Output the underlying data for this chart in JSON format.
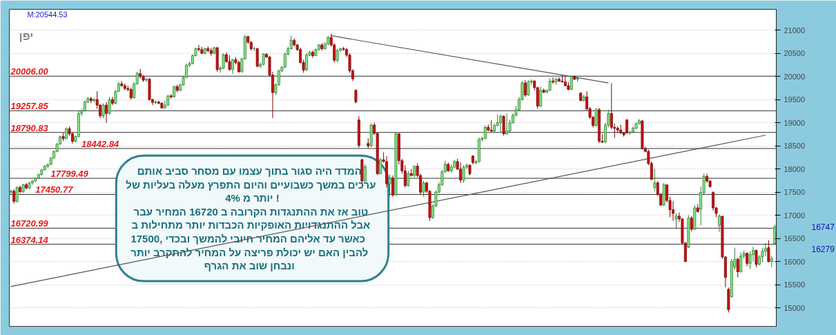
{
  "chart_data": {
    "type": "candlestick",
    "title": "יפן",
    "categories": [
      null,
      null,
      null,
      null,
      null,
      null,
      null,
      null,
      null,
      null,
      null,
      null,
      null,
      null,
      null,
      null,
      null,
      null,
      null,
      null,
      null,
      null,
      null,
      null,
      null,
      null,
      null,
      null,
      null,
      null,
      null,
      null,
      null,
      null,
      null,
      null,
      null,
      null,
      null,
      null,
      null,
      null,
      null,
      null,
      null,
      null,
      null,
      null,
      null,
      null,
      null,
      null,
      null,
      null,
      null,
      null,
      null,
      null,
      null,
      null,
      null,
      null,
      null,
      null,
      null,
      null,
      null,
      null,
      null,
      null,
      null,
      null,
      null,
      null,
      null,
      null,
      null,
      null,
      null,
      null,
      null,
      null,
      null,
      null,
      null,
      null,
      null,
      null,
      null,
      null,
      null,
      null,
      null,
      null,
      null,
      null,
      null,
      null,
      null,
      null,
      null,
      null,
      null,
      null,
      null,
      null,
      null,
      null,
      null,
      null,
      null,
      null,
      null,
      null,
      null,
      null,
      null,
      null,
      null,
      null,
      null,
      null,
      null,
      null,
      null,
      null,
      null,
      null,
      null,
      null,
      null,
      null,
      null,
      null,
      null,
      null,
      null,
      null,
      null,
      null,
      null,
      null,
      null,
      null,
      null,
      null,
      null,
      null,
      null,
      null,
      null,
      null,
      null,
      null,
      null,
      null,
      null,
      null,
      null,
      null,
      null,
      null,
      null,
      null,
      null,
      null,
      null,
      null,
      null,
      null,
      null,
      null,
      null,
      null,
      null,
      null,
      null,
      null,
      null,
      null,
      null,
      null,
      null,
      null,
      null,
      null,
      null,
      null,
      null,
      null,
      null,
      null,
      null,
      null,
      null,
      null,
      null,
      null,
      null,
      null,
      null,
      null,
      null,
      null,
      null,
      null,
      null,
      null,
      null,
      null,
      null,
      null,
      null,
      null,
      null,
      null,
      null,
      null,
      null,
      null,
      null,
      null,
      null,
      null,
      null,
      null,
      null,
      null,
      null,
      null,
      null,
      null,
      null,
      null,
      null,
      null,
      null,
      null,
      null,
      null,
      null,
      null,
      null,
      null,
      null,
      null,
      null,
      null,
      null
    ],
    "ohlc": [
      [
        17500,
        17560,
        17440,
        17520
      ],
      [
        17520,
        17560,
        17250,
        17300
      ],
      [
        17300,
        17620,
        17280,
        17600
      ],
      [
        17600,
        17640,
        17480,
        17510
      ],
      [
        17510,
        17680,
        17490,
        17660
      ],
      [
        17660,
        17700,
        17560,
        17590
      ],
      [
        17590,
        17720,
        17570,
        17700
      ],
      [
        17700,
        17760,
        17660,
        17740
      ],
      [
        17740,
        17820,
        17720,
        17800
      ],
      [
        17800,
        17900,
        17780,
        17880
      ],
      [
        17880,
        18000,
        17860,
        17980
      ],
      [
        17980,
        18080,
        17960,
        18060
      ],
      [
        18060,
        18120,
        18020,
        18100
      ],
      [
        18100,
        18250,
        18080,
        18240
      ],
      [
        18240,
        18400,
        18220,
        18380
      ],
      [
        18380,
        18560,
        18360,
        18540
      ],
      [
        18540,
        18720,
        18520,
        18700
      ],
      [
        18700,
        18780,
        18600,
        18660
      ],
      [
        18660,
        18900,
        18640,
        18870
      ],
      [
        18870,
        18920,
        18720,
        18760
      ],
      [
        18760,
        18800,
        18550,
        18600
      ],
      [
        18600,
        18720,
        18580,
        18700
      ],
      [
        18700,
        19250,
        18680,
        19200
      ],
      [
        19200,
        19300,
        19150,
        19260
      ],
      [
        19260,
        19480,
        19240,
        19450
      ],
      [
        19450,
        19560,
        19420,
        19520
      ],
      [
        19520,
        19560,
        19420,
        19480
      ],
      [
        19480,
        19530,
        19440,
        19500
      ],
      [
        19500,
        19680,
        19300,
        19380
      ],
      [
        19380,
        19400,
        19100,
        19150
      ],
      [
        19150,
        19420,
        19100,
        19380
      ],
      [
        19380,
        19450,
        19000,
        19200
      ],
      [
        19200,
        19560,
        19180,
        19500
      ],
      [
        19500,
        19560,
        19380,
        19420
      ],
      [
        19420,
        19700,
        19400,
        19680
      ],
      [
        19680,
        19880,
        19660,
        19840
      ],
      [
        19840,
        19900,
        19780,
        19800
      ],
      [
        19800,
        19850,
        19700,
        19740
      ],
      [
        19740,
        19800,
        19680,
        19720
      ],
      [
        19720,
        19760,
        19500,
        19540
      ],
      [
        19540,
        19880,
        19520,
        19840
      ],
      [
        19840,
        20100,
        19820,
        20060
      ],
      [
        20060,
        20160,
        19950,
        20000
      ],
      [
        20000,
        20020,
        19880,
        19920
      ],
      [
        19920,
        19960,
        19880,
        19940
      ],
      [
        19940,
        19960,
        19480,
        19500
      ],
      [
        19500,
        19520,
        19380,
        19440
      ],
      [
        19440,
        19480,
        19400,
        19450
      ],
      [
        19450,
        19470,
        19400,
        19420
      ],
      [
        19420,
        19440,
        19300,
        19320
      ],
      [
        19320,
        19480,
        19300,
        19380
      ],
      [
        19380,
        19600,
        19380,
        19580
      ],
      [
        19580,
        19620,
        19520,
        19560
      ],
      [
        19560,
        19800,
        19540,
        19780
      ],
      [
        19780,
        19820,
        19660,
        19700
      ],
      [
        19700,
        19840,
        19680,
        19820
      ],
      [
        19820,
        20000,
        19800,
        19980
      ],
      [
        19980,
        20280,
        19960,
        20240
      ],
      [
        20240,
        20320,
        20200,
        20280
      ],
      [
        20280,
        20480,
        20260,
        20450
      ],
      [
        20450,
        20620,
        20430,
        20600
      ],
      [
        20600,
        20680,
        20540,
        20580
      ],
      [
        20580,
        20640,
        20480,
        20500
      ],
      [
        20500,
        20620,
        20480,
        20600
      ],
      [
        20600,
        20650,
        20520,
        20560
      ],
      [
        20560,
        20620,
        20450,
        20500
      ],
      [
        20500,
        20640,
        20480,
        20620
      ],
      [
        20620,
        20640,
        20100,
        20150
      ],
      [
        20150,
        20220,
        20080,
        20180
      ],
      [
        20180,
        20500,
        20160,
        20470
      ],
      [
        20470,
        20520,
        20300,
        20320
      ],
      [
        20320,
        20460,
        20120,
        20150
      ],
      [
        20150,
        20380,
        20050,
        20360
      ],
      [
        20360,
        20420,
        20260,
        20300
      ],
      [
        20300,
        20340,
        20080,
        20100
      ],
      [
        20100,
        20400,
        20080,
        20380
      ],
      [
        20380,
        20900,
        20360,
        20860
      ],
      [
        20860,
        20880,
        20700,
        20740
      ],
      [
        20740,
        20760,
        20560,
        20600
      ],
      [
        20600,
        20640,
        20550,
        20600
      ],
      [
        20600,
        20620,
        20200,
        20220
      ],
      [
        20220,
        20300,
        20180,
        20260
      ],
      [
        20260,
        20500,
        20240,
        20480
      ],
      [
        20480,
        20500,
        20400,
        20420
      ],
      [
        20420,
        20440,
        20000,
        20030
      ],
      [
        20030,
        20100,
        19100,
        19650
      ],
      [
        19650,
        19850,
        19600,
        19820
      ],
      [
        19820,
        20150,
        19800,
        20120
      ],
      [
        20120,
        20220,
        20100,
        20200
      ],
      [
        20200,
        20520,
        20180,
        20480
      ],
      [
        20480,
        20640,
        20460,
        20600
      ],
      [
        20600,
        20880,
        20580,
        20780
      ],
      [
        20780,
        20820,
        20650,
        20680
      ],
      [
        20680,
        20700,
        20550,
        20580
      ],
      [
        20580,
        20620,
        20280,
        20300
      ],
      [
        20300,
        20360,
        20080,
        20140
      ],
      [
        20140,
        20500,
        20120,
        20460
      ],
      [
        20460,
        20560,
        20440,
        20520
      ],
      [
        20520,
        20560,
        20400,
        20450
      ],
      [
        20450,
        20600,
        20440,
        20580
      ],
      [
        20580,
        20700,
        20560,
        20680
      ],
      [
        20680,
        20720,
        20560,
        20600
      ],
      [
        20600,
        20740,
        20580,
        20700
      ],
      [
        20700,
        20880,
        20680,
        20840
      ],
      [
        20840,
        20920,
        20650,
        20680
      ],
      [
        20680,
        20720,
        20300,
        20350
      ],
      [
        20350,
        20600,
        20300,
        20560
      ],
      [
        20560,
        20620,
        20540,
        20600
      ],
      [
        20600,
        20640,
        20560,
        20580
      ],
      [
        20580,
        20620,
        20420,
        20460
      ],
      [
        20460,
        20500,
        20080,
        20120
      ],
      [
        20120,
        20160,
        19900,
        19950
      ],
      [
        19700,
        19720,
        19420,
        19450
      ],
      [
        19060,
        19140,
        18460,
        18510
      ],
      [
        18200,
        18220,
        17700,
        17740
      ],
      [
        17740,
        18100,
        17720,
        18050
      ],
      [
        18550,
        18660,
        18450,
        18500
      ],
      [
        18500,
        18980,
        18480,
        18950
      ],
      [
        18950,
        19000,
        18740,
        18770
      ],
      [
        18770,
        18800,
        17870,
        17900
      ],
      [
        17900,
        18240,
        17880,
        18200
      ],
      [
        18200,
        18360,
        18140,
        18160
      ],
      [
        18160,
        18280,
        17600,
        17680
      ],
      [
        17680,
        17880,
        17420,
        17800
      ],
      [
        17800,
        17860,
        17400,
        17440
      ],
      [
        17440,
        18800,
        17420,
        18760
      ],
      [
        18760,
        18780,
        18100,
        18180
      ],
      [
        18180,
        18220,
        17900,
        17960
      ],
      [
        17960,
        18080,
        17600,
        17640
      ],
      [
        17640,
        17960,
        17620,
        17900
      ],
      [
        17900,
        18000,
        17840,
        17860
      ],
      [
        17860,
        18080,
        17820,
        18060
      ],
      [
        18060,
        18120,
        17820,
        17860
      ],
      [
        17860,
        17900,
        17440,
        17500
      ],
      [
        17500,
        17740,
        17400,
        17700
      ],
      [
        17700,
        17720,
        17480,
        17520
      ],
      [
        17520,
        17540,
        16880,
        16950
      ],
      [
        16950,
        17240,
        16920,
        17200
      ],
      [
        17200,
        17540,
        17180,
        17500
      ],
      [
        17500,
        17720,
        17480,
        17660
      ],
      [
        17660,
        17980,
        17640,
        17940
      ],
      [
        17940,
        18180,
        17920,
        18100
      ],
      [
        18100,
        18140,
        17940,
        17960
      ],
      [
        17960,
        18100,
        17920,
        18040
      ],
      [
        18040,
        18200,
        18020,
        18160
      ],
      [
        18160,
        18220,
        17980,
        18000
      ],
      [
        18000,
        18140,
        17700,
        17760
      ],
      [
        17760,
        18080,
        17700,
        18040
      ],
      [
        18040,
        18120,
        18000,
        18080
      ],
      [
        18080,
        18100,
        17860,
        17900
      ],
      [
        18280,
        18300,
        18100,
        18140
      ],
      [
        18140,
        18200,
        18100,
        18160
      ],
      [
        18160,
        18680,
        18140,
        18640
      ],
      [
        18640,
        18700,
        18600,
        18660
      ],
      [
        18660,
        18940,
        18640,
        18900
      ],
      [
        18900,
        18960,
        18820,
        18840
      ],
      [
        18840,
        19060,
        18800,
        18820
      ],
      [
        18820,
        18980,
        18790,
        18940
      ],
      [
        18940,
        19180,
        18920,
        19000
      ],
      [
        19000,
        19180,
        18800,
        19140
      ],
      [
        19140,
        19160,
        18720,
        18760
      ],
      [
        18760,
        19200,
        18740,
        18820
      ],
      [
        18820,
        19060,
        18800,
        19000
      ],
      [
        19000,
        19200,
        18980,
        19160
      ],
      [
        19160,
        19360,
        19140,
        19280
      ],
      [
        19280,
        19560,
        19260,
        19500
      ],
      [
        19500,
        19900,
        19480,
        19860
      ],
      [
        19860,
        19920,
        19560,
        19600
      ],
      [
        19600,
        19920,
        19580,
        19880
      ],
      [
        19880,
        19940,
        19820,
        19900
      ],
      [
        19900,
        19920,
        19700,
        19760
      ],
      [
        19760,
        19760,
        19300,
        19360
      ],
      [
        19360,
        19780,
        19340,
        19700
      ],
      [
        19700,
        19740,
        19640,
        19660
      ],
      [
        19660,
        19720,
        19640,
        19700
      ],
      [
        19700,
        19960,
        19680,
        19900
      ],
      [
        19900,
        19980,
        19840,
        19880
      ],
      [
        19880,
        19960,
        19820,
        19940
      ],
      [
        19940,
        19980,
        19880,
        19900
      ],
      [
        19900,
        20020,
        19870,
        19880
      ],
      [
        19880,
        20000,
        19780,
        19800
      ],
      [
        19800,
        19880,
        19700,
        19720
      ],
      [
        19720,
        20020,
        19700,
        20000
      ],
      [
        20000,
        20020,
        19920,
        19940
      ],
      [
        19940,
        20000,
        19880,
        19960
      ],
      [
        19640,
        19660,
        19460,
        19480
      ],
      [
        19480,
        19600,
        19460,
        19560
      ],
      [
        19560,
        19680,
        19260,
        19300
      ],
      [
        19300,
        19340,
        19080,
        19120
      ],
      [
        19120,
        19140,
        18900,
        18940
      ],
      [
        18940,
        19320,
        18920,
        19280
      ],
      [
        19280,
        19320,
        18560,
        18600
      ],
      [
        18600,
        18760,
        18560,
        18580
      ],
      [
        18580,
        19000,
        18560,
        18950
      ],
      [
        18950,
        19280,
        18900,
        19200
      ],
      [
        19200,
        19850,
        18860,
        18900
      ],
      [
        18900,
        18980,
        18670,
        18880
      ],
      [
        18880,
        18920,
        18780,
        18840
      ],
      [
        18840,
        18960,
        18760,
        18780
      ],
      [
        18780,
        18800,
        18700,
        18740
      ],
      [
        19060,
        19080,
        18760,
        18780
      ],
      [
        18780,
        18820,
        18740,
        18800
      ],
      [
        18800,
        18920,
        18780,
        18880
      ],
      [
        18880,
        19000,
        18860,
        18980
      ],
      [
        18980,
        19080,
        18960,
        19040
      ],
      [
        19040,
        19060,
        18420,
        18440
      ],
      [
        18440,
        18480,
        18360,
        18380
      ],
      [
        18380,
        18420,
        18080,
        18120
      ],
      [
        18120,
        18160,
        17760,
        17780
      ],
      [
        17600,
        18000,
        17520,
        17700
      ],
      [
        17700,
        17740,
        17420,
        17460
      ],
      [
        17460,
        17460,
        17200,
        17220
      ],
      [
        17220,
        17700,
        17200,
        17660
      ],
      [
        17660,
        17660,
        17280,
        17320
      ],
      [
        17320,
        17400,
        16960,
        17120
      ],
      [
        17120,
        17300,
        16880,
        17040
      ],
      [
        16920,
        17040,
        16700,
        16980
      ],
      [
        16980,
        17060,
        16860,
        16920
      ],
      [
        16920,
        16940,
        16380,
        16400
      ],
      [
        16400,
        16420,
        15990,
        16000
      ],
      [
        16310,
        17000,
        16290,
        16940
      ],
      [
        16940,
        16980,
        16650,
        16700
      ],
      [
        16700,
        17220,
        16680,
        17160
      ],
      [
        17160,
        17240,
        17060,
        17080
      ],
      [
        17130,
        17620,
        16780,
        17490
      ],
      [
        17490,
        17900,
        17460,
        17840
      ],
      [
        17840,
        17900,
        17700,
        17740
      ],
      [
        17740,
        17760,
        17600,
        17620
      ],
      [
        17490,
        17520,
        17100,
        17160
      ],
      [
        17160,
        17180,
        16960,
        17040
      ],
      [
        16780,
        17020,
        16640,
        16980
      ],
      [
        16980,
        16980,
        16060,
        16100
      ],
      [
        16100,
        16120,
        15440,
        15660
      ],
      [
        15400,
        15440,
        14900,
        14960
      ],
      [
        15240,
        16060,
        15220,
        16000
      ],
      [
        15880,
        16300,
        15820,
        16050
      ],
      [
        16050,
        16080,
        15660,
        15780
      ],
      [
        15780,
        16200,
        15760,
        16120
      ],
      [
        16120,
        16240,
        16060,
        16180
      ],
      [
        16180,
        16200,
        15900,
        15960
      ],
      [
        15960,
        16220,
        15840,
        16150
      ],
      [
        16150,
        16320,
        16000,
        16240
      ],
      [
        16240,
        16260,
        15880,
        15940
      ],
      [
        15940,
        16140,
        15920,
        16100
      ],
      [
        16100,
        16300,
        15980,
        16220
      ],
      [
        16220,
        16400,
        16120,
        16280
      ],
      [
        16300,
        16460,
        15980,
        16000
      ],
      [
        16000,
        16120,
        15880,
        16060
      ],
      [
        16390,
        16800,
        16370,
        16747
      ]
    ],
    "series": [
      {
        "type": "line",
        "color": "#555555",
        "values": [
          null,
          null,
          null,
          null,
          null,
          null,
          null,
          null,
          null,
          null,
          null,
          null,
          null,
          null,
          null,
          null,
          null,
          null,
          null,
          null,
          null,
          null,
          null,
          null,
          null,
          null,
          null,
          null,
          null,
          null,
          null,
          null,
          null,
          null,
          null,
          null,
          null,
          null,
          null,
          null,
          null,
          null,
          null,
          null,
          null,
          null,
          null,
          null,
          null,
          null,
          null,
          null,
          null,
          null,
          null,
          null,
          null,
          null,
          null,
          null,
          null,
          null,
          null,
          null,
          null,
          null,
          null,
          null,
          null,
          null,
          null,
          null,
          null,
          null,
          null,
          null,
          null,
          null,
          null,
          null,
          null,
          null,
          null,
          null,
          null,
          null,
          null,
          null,
          null,
          null,
          null,
          null,
          null,
          null,
          null,
          null,
          null,
          null,
          null,
          null,
          null,
          null,
          null,
          null,
          20880,
          null,
          null,
          null,
          null,
          null,
          null,
          null,
          null,
          null,
          null,
          null,
          null,
          null,
          null,
          null,
          null,
          null,
          null,
          null,
          null,
          null,
          null,
          null,
          null,
          null,
          null,
          null,
          null,
          null,
          null,
          null,
          null,
          null,
          null,
          null,
          null,
          null,
          null,
          null,
          null,
          null,
          null,
          null,
          null,
          null,
          null,
          null,
          null,
          null,
          null,
          null,
          null,
          null,
          null,
          null,
          null,
          null,
          null,
          null,
          null,
          null,
          null,
          null,
          null,
          null,
          null,
          null,
          null,
          null,
          null,
          null,
          null,
          null,
          null,
          null,
          null,
          null,
          null,
          null,
          null,
          null,
          null,
          null,
          null,
          null,
          null,
          null,
          null,
          null,
          19860,
          null,
          null,
          null,
          null,
          null,
          null,
          null,
          null,
          null,
          null,
          null,
          null,
          null,
          null,
          null,
          null,
          null,
          null,
          null,
          null,
          null,
          null,
          null,
          null,
          null,
          null,
          null,
          null,
          null,
          null,
          null,
          null,
          null,
          null,
          null,
          null,
          null,
          null,
          null,
          null,
          null,
          null,
          null,
          null,
          null,
          null,
          null,
          null,
          null,
          null,
          null,
          null,
          null,
          null
        ]
      },
      {
        "type": "line",
        "color": "#555555",
        "values": [
          15460,
          null,
          null,
          null,
          null,
          null,
          null,
          null,
          null,
          null,
          null,
          null,
          null,
          null,
          null,
          null,
          null,
          null,
          null,
          null,
          null,
          null,
          null,
          null,
          null,
          null,
          null,
          null,
          null,
          null,
          null,
          null,
          null,
          null,
          null,
          null,
          null,
          null,
          null,
          null,
          null,
          null,
          null,
          null,
          null,
          null,
          null,
          null,
          null,
          null,
          null,
          null,
          null,
          null,
          null,
          null,
          null,
          null,
          null,
          null,
          null,
          null,
          null,
          null,
          null,
          null,
          null,
          null,
          null,
          null,
          null,
          null,
          null,
          null,
          null,
          null,
          null,
          null,
          null,
          null,
          null,
          null,
          null,
          null,
          null,
          null,
          null,
          null,
          null,
          null,
          null,
          null,
          null,
          null,
          null,
          null,
          null,
          null,
          null,
          null,
          null,
          null,
          null,
          null,
          null,
          null,
          null,
          null,
          null,
          null,
          null,
          null,
          null,
          null,
          null,
          null,
          null,
          null,
          null,
          null,
          null,
          null,
          null,
          null,
          null,
          null,
          null,
          null,
          null,
          null,
          null,
          null,
          null,
          null,
          null,
          null,
          null,
          null,
          null,
          null,
          null,
          null,
          null,
          null,
          null,
          null,
          null,
          null,
          null,
          null,
          null,
          null,
          null,
          null,
          null,
          null,
          null,
          null,
          null,
          null,
          null,
          null,
          null,
          null,
          null,
          null,
          null,
          null,
          null,
          null,
          null,
          null,
          null,
          null,
          null,
          null,
          null,
          null,
          null,
          null,
          null,
          null,
          null,
          null,
          null,
          null,
          null,
          null,
          null,
          null,
          null,
          null,
          null,
          null,
          null,
          null,
          null,
          null,
          null,
          null,
          null,
          null,
          null,
          null,
          null,
          null,
          null,
          null,
          null,
          null,
          null,
          null,
          null,
          null,
          null,
          null,
          null,
          null,
          null,
          null,
          null,
          null,
          null,
          null,
          null,
          null,
          null,
          null,
          null,
          null,
          null,
          null,
          null,
          null,
          null,
          null,
          null,
          null,
          null,
          null,
          null,
          null,
          null,
          null,
          null,
          18730,
          null,
          null,
          null
        ]
      }
    ],
    "ylim": [
      14600,
      21450
    ],
    "yticks": [
      15000,
      15500,
      16000,
      16500,
      17000,
      17500,
      18000,
      18500,
      19000,
      19500,
      20000,
      20500,
      21000
    ],
    "grid": "y",
    "ref_lines": [
      {
        "axis": "y",
        "value": 20006.0,
        "label": "20006.00"
      },
      {
        "axis": "y",
        "value": 19257.85,
        "label": "19257.85"
      },
      {
        "axis": "y",
        "value": 18790.83,
        "label": "18790.83"
      },
      {
        "axis": "y",
        "value": 18442.84,
        "label": "18442.84"
      },
      {
        "axis": "y",
        "value": 17799.49,
        "label": "17799.49"
      },
      {
        "axis": "y",
        "value": 17450.77,
        "label": "17450.77"
      },
      {
        "axis": "y",
        "value": 16720.99,
        "label": "16720.99"
      },
      {
        "axis": "y",
        "value": 16374.14,
        "label": "16374.14"
      }
    ],
    "annotations": [
      "M:20544.53",
      "המדד היה סגור בתוך עצמו  עם  מסחר סביב אותם\nערכים במשך כשבועיים והיום התפרץ מעלה  בעליות של\nיותר מ 4% !\nטוב אז את  ההתנגדות הקרובה ב 16720 המחיר עבר\nאבל  ההתנגדויות האופקיות הכבדות יותר מתחילות ב\n17500, כאשר עד אליהם  המחיר  חיובי להמשך  ובכדי\nלהבין האם יש יכולת פריצה  על המחיר  להתקרב יותר\nונבחן  שוב  את הגרף",
      "16747",
      "16279"
    ]
  }
}
